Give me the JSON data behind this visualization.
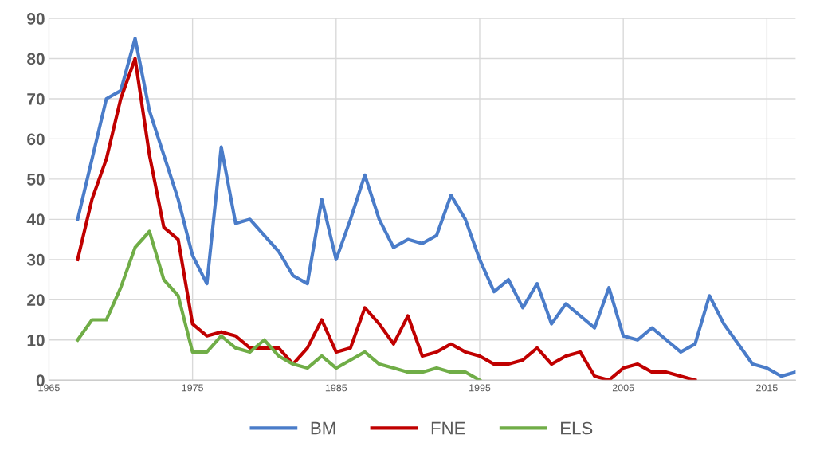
{
  "chart_data": {
    "type": "line",
    "x": [
      1967,
      1968,
      1969,
      1970,
      1971,
      1972,
      1973,
      1974,
      1975,
      1976,
      1977,
      1978,
      1979,
      1980,
      1981,
      1982,
      1983,
      1984,
      1985,
      1986,
      1987,
      1988,
      1989,
      1990,
      1991,
      1992,
      1993,
      1994,
      1995,
      1996,
      1997,
      1998,
      1999,
      2000,
      2001,
      2002,
      2003,
      2004,
      2005,
      2006,
      2007,
      2008,
      2009,
      2010,
      2011,
      2012,
      2013,
      2014,
      2015,
      2016,
      2017
    ],
    "series": [
      {
        "name": "BM",
        "color": "#4a7cc9",
        "values": [
          40,
          55,
          70,
          72,
          85,
          67,
          56,
          45,
          31,
          24,
          58,
          39,
          40,
          36,
          32,
          26,
          24,
          45,
          30,
          40,
          51,
          40,
          33,
          35,
          34,
          36,
          46,
          40,
          30,
          22,
          25,
          18,
          24,
          14,
          19,
          16,
          13,
          23,
          11,
          10,
          13,
          10,
          7,
          9,
          21,
          14,
          9,
          4,
          3,
          1,
          2
        ]
      },
      {
        "name": "FNE",
        "color": "#c00000",
        "values": [
          30,
          45,
          55,
          70,
          80,
          56,
          38,
          35,
          14,
          11,
          12,
          11,
          8,
          8,
          8,
          4,
          8,
          15,
          7,
          8,
          18,
          14,
          9,
          16,
          6,
          7,
          9,
          7,
          6,
          4,
          4,
          5,
          8,
          4,
          6,
          7,
          1,
          0,
          3,
          4,
          2,
          2,
          1,
          0,
          null,
          null,
          null,
          null,
          null,
          null,
          null
        ]
      },
      {
        "name": "ELS",
        "color": "#70ad47",
        "values": [
          10,
          15,
          15,
          23,
          33,
          37,
          25,
          21,
          7,
          7,
          11,
          8,
          7,
          10,
          6,
          4,
          3,
          6,
          3,
          5,
          7,
          4,
          3,
          2,
          2,
          3,
          2,
          2,
          0,
          null,
          null,
          null,
          null,
          null,
          null,
          null,
          null,
          null,
          null,
          null,
          null,
          null,
          null,
          null,
          null,
          null,
          null,
          null,
          null,
          null,
          null
        ]
      }
    ],
    "xlim": [
      1965,
      2017
    ],
    "xticks": [
      1965,
      1975,
      1985,
      1995,
      2005,
      2015
    ],
    "ylim": [
      0,
      90
    ],
    "yticks": [
      0,
      10,
      20,
      30,
      40,
      50,
      60,
      70,
      80,
      90
    ],
    "grid": true,
    "legend": "bottom",
    "marker": "none",
    "line_style": "solid"
  }
}
